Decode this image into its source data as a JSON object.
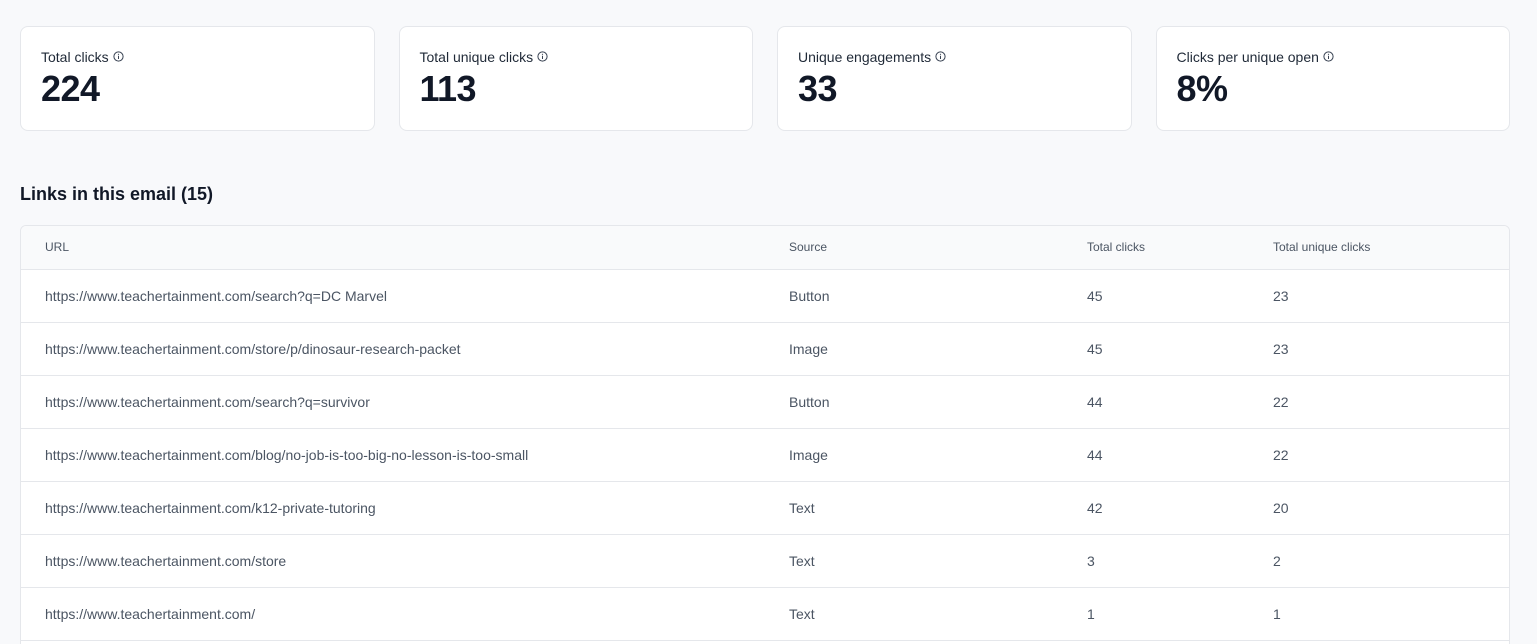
{
  "stats": [
    {
      "label": "Total clicks",
      "value": "224"
    },
    {
      "label": "Total unique clicks",
      "value": "113"
    },
    {
      "label": "Unique engagements",
      "value": "33"
    },
    {
      "label": "Clicks per unique open",
      "value": "8%"
    }
  ],
  "links_section": {
    "title": "Links in this email (15)"
  },
  "table": {
    "headers": {
      "url": "URL",
      "source": "Source",
      "total_clicks": "Total clicks",
      "total_unique_clicks": "Total unique clicks"
    },
    "rows": [
      {
        "url": "https://www.teachertainment.com/search?q=DC Marvel",
        "source": "Button",
        "total_clicks": "45",
        "total_unique_clicks": "23"
      },
      {
        "url": "https://www.teachertainment.com/store/p/dinosaur-research-packet",
        "source": "Image",
        "total_clicks": "45",
        "total_unique_clicks": "23"
      },
      {
        "url": "https://www.teachertainment.com/search?q=survivor",
        "source": "Button",
        "total_clicks": "44",
        "total_unique_clicks": "22"
      },
      {
        "url": "https://www.teachertainment.com/blog/no-job-is-too-big-no-lesson-is-too-small",
        "source": "Image",
        "total_clicks": "44",
        "total_unique_clicks": "22"
      },
      {
        "url": "https://www.teachertainment.com/k12-private-tutoring",
        "source": "Text",
        "total_clicks": "42",
        "total_unique_clicks": "20"
      },
      {
        "url": "https://www.teachertainment.com/store",
        "source": "Text",
        "total_clicks": "3",
        "total_unique_clicks": "2"
      },
      {
        "url": "https://www.teachertainment.com/",
        "source": "Text",
        "total_clicks": "1",
        "total_unique_clicks": "1"
      }
    ]
  },
  "icons": {
    "info": "info-circle-icon"
  }
}
